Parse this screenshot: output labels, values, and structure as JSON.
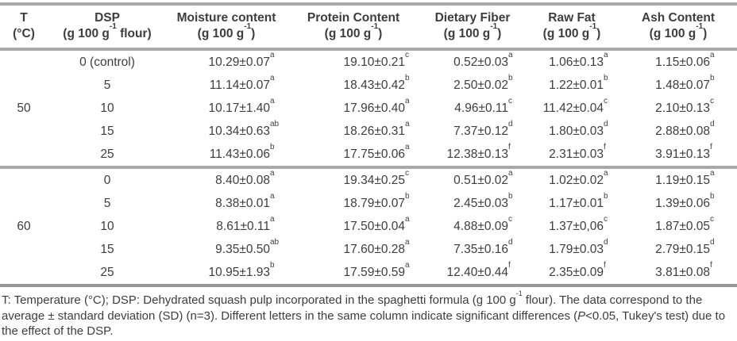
{
  "table": {
    "colors": {
      "rule_gray": "#a8a8a8",
      "bottom_rule": "#979797",
      "text": "#3d3d3d"
    },
    "headers": [
      {
        "line1": "T",
        "line2": [
          {
            "t": "(°C)"
          }
        ]
      },
      {
        "line1": "DSP",
        "line2": [
          {
            "t": "(g 100 g"
          },
          {
            "t": "-1",
            "sup": true
          },
          {
            "t": " flour)"
          }
        ]
      },
      {
        "line1": "Moisture content",
        "line2": [
          {
            "t": "(g 100 g"
          },
          {
            "t": "-1",
            "sup": true
          },
          {
            "t": ")"
          }
        ]
      },
      {
        "line1": "Protein Content",
        "line2": [
          {
            "t": "(g 100 g"
          },
          {
            "t": "-1",
            "sup": true
          },
          {
            "t": ")"
          }
        ]
      },
      {
        "line1": "Dietary Fiber",
        "line2": [
          {
            "t": "(g 100 g"
          },
          {
            "t": "-1",
            "sup": true
          },
          {
            "t": ")"
          }
        ]
      },
      {
        "line1": "Raw Fat",
        "line2": [
          {
            "t": "(g 100 g"
          },
          {
            "t": "-1",
            "sup": true
          },
          {
            "t": ")"
          }
        ]
      },
      {
        "line1": "Ash Content",
        "line2": [
          {
            "t": "(g 100 g"
          },
          {
            "t": "-1",
            "sup": true
          },
          {
            "t": ")"
          }
        ]
      }
    ],
    "value_names": [
      "moisture-content",
      "protein-content",
      "dietary-fiber",
      "raw-fat",
      "ash-content"
    ],
    "groups": [
      {
        "temperature": "50",
        "rows": [
          {
            "dsp": "0 (control)",
            "values": [
              {
                "v": "10.29±0.07",
                "s": "a"
              },
              {
                "v": "19.10±0.21",
                "s": "c"
              },
              {
                "v": "0.52±0.03",
                "s": "a"
              },
              {
                "v": "1.06±0.13",
                "s": "a"
              },
              {
                "v": "1.15±0.06",
                "s": "a"
              }
            ]
          },
          {
            "dsp": "5",
            "values": [
              {
                "v": "11.14±0.07",
                "s": "a"
              },
              {
                "v": "18.43±0.42",
                "s": "b"
              },
              {
                "v": "2.50±0.02",
                "s": "b"
              },
              {
                "v": "1.22±0.01",
                "s": "b"
              },
              {
                "v": "1.48±0.07",
                "s": "b"
              }
            ]
          },
          {
            "dsp": "10",
            "values": [
              {
                "v": "10.17±1.40",
                "s": "a"
              },
              {
                "v": "17.96±0.40",
                "s": "a"
              },
              {
                "v": "4.96±0.11",
                "s": "c"
              },
              {
                "v": "11.42±0.04",
                "s": "c"
              },
              {
                "v": "2.10±0.13",
                "s": "c"
              }
            ]
          },
          {
            "dsp": "15",
            "values": [
              {
                "v": "10.34±0.63",
                "s": "ab"
              },
              {
                "v": "18.26±0.31",
                "s": "a"
              },
              {
                "v": "7.37±0.12",
                "s": "d"
              },
              {
                "v": "1.80±0.03",
                "s": "d"
              },
              {
                "v": "2.88±0.08",
                "s": "d"
              }
            ]
          },
          {
            "dsp": "25",
            "values": [
              {
                "v": "11.43±0.06",
                "s": "b"
              },
              {
                "v": "17.75±0.06",
                "s": "a"
              },
              {
                "v": "12.38±0.13",
                "s": "f"
              },
              {
                "v": "2.31±0.03",
                "s": "f"
              },
              {
                "v": "3.91±0.13",
                "s": "f"
              }
            ]
          }
        ]
      },
      {
        "temperature": "60",
        "rows": [
          {
            "dsp": "0",
            "values": [
              {
                "v": "8.40±0.08",
                "s": "a"
              },
              {
                "v": "19.34±0.25",
                "s": "c"
              },
              {
                "v": "0.51±0.02",
                "s": "a"
              },
              {
                "v": "1.02±0.02",
                "s": "a"
              },
              {
                "v": "1.19±0.15",
                "s": "a"
              }
            ]
          },
          {
            "dsp": "5",
            "values": [
              {
                "v": "8.38±0.01",
                "s": "a"
              },
              {
                "v": "18.79±0.07",
                "s": "b"
              },
              {
                "v": "2.45±0.03",
                "s": "b"
              },
              {
                "v": "1.17±0.01",
                "s": "b"
              },
              {
                "v": "1.39±0.06",
                "s": "b"
              }
            ]
          },
          {
            "dsp": "10",
            "values": [
              {
                "v": "8.61±0.11",
                "s": "a"
              },
              {
                "v": "17.50±0.04",
                "s": "a"
              },
              {
                "v": "4.88±0.09",
                "s": "c"
              },
              {
                "v": "1.37±0,06",
                "s": "c"
              },
              {
                "v": "1.87±0.05",
                "s": "c"
              }
            ]
          },
          {
            "dsp": "15",
            "values": [
              {
                "v": "9.35±0.50",
                "s": "ab"
              },
              {
                "v": "17.60±0.28",
                "s": "a"
              },
              {
                "v": "7.35±0.16",
                "s": "d"
              },
              {
                "v": "1.79±0.03",
                "s": "d"
              },
              {
                "v": "2.79±0.15",
                "s": "d"
              }
            ]
          },
          {
            "dsp": "25",
            "values": [
              {
                "v": "10.95±1.93",
                "s": "b"
              },
              {
                "v": "17.59±0.59",
                "s": "a"
              },
              {
                "v": "12.40±0.44",
                "s": "f"
              },
              {
                "v": "2.35±0.09",
                "s": "f"
              },
              {
                "v": "3.81±0.08",
                "s": "f"
              }
            ]
          }
        ]
      }
    ],
    "footnote": [
      {
        "t": "T: Temperature (°C); DSP: Dehydrated squash pulp incorporated in the spaghetti formula (g 100 g"
      },
      {
        "t": "-1",
        "sup": true
      },
      {
        "t": " flour). The data correspond to the average ± standard deviation (SD) (n=3). Different letters in the same column indicate significant differences ("
      },
      {
        "t": "P",
        "i": true
      },
      {
        "t": "<0.05, Tukey's test) due to the effect of the DSP."
      }
    ]
  }
}
